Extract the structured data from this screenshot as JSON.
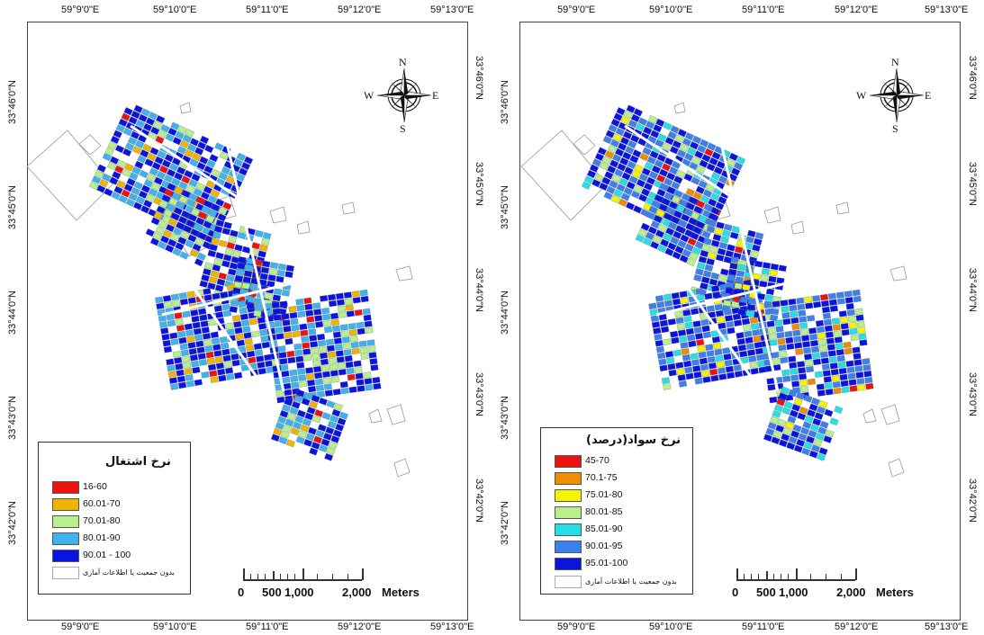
{
  "left_map": {
    "top_lon_labels": [
      "59°9'0\"E",
      "59°10'0\"E",
      "59°11'0\"E",
      "59°12'0\"E",
      "59°13'0\"E"
    ],
    "bottom_lon_labels": [
      "59°9'0\"E",
      "59°10'0\"E",
      "59°11'0\"E",
      "59°12'0\"E",
      "59°13'0\"E"
    ],
    "lat_labels": [
      "33°46'0\"N",
      "33°45'0\"N",
      "33°44'0\"N",
      "33°43'0\"N",
      "33°42'0\"N"
    ],
    "compass": {
      "n": "N",
      "s": "S",
      "e": "E",
      "w": "W"
    },
    "legend": {
      "title": "نرخ اشتغال",
      "items": [
        {
          "label": "16-60",
          "color": "#ee1111"
        },
        {
          "label": "60.01-70",
          "color": "#f0b400"
        },
        {
          "label": "70.01-80",
          "color": "#b7f08c"
        },
        {
          "label": "80.01-90",
          "color": "#3cb2ee"
        },
        {
          "label": "90.01 - 100",
          "color": "#0a14e0"
        }
      ],
      "no_data_label": "بدون جمعیت یا اطلاعات آماری",
      "no_data_color": "#ffffff"
    },
    "scale": {
      "ticks": [
        "0",
        "500",
        "1,000",
        "2,000"
      ],
      "unit": "Meters"
    }
  },
  "right_map": {
    "top_lon_labels": [
      "59°9'0\"E",
      "59°10'0\"E",
      "59°11'0\"E",
      "59°12'0\"E",
      "59°13'0\"E"
    ],
    "bottom_lon_labels": [
      "59°9'0\"E",
      "59°10'0\"E",
      "59°11'0\"E",
      "59°12'0\"E",
      "59°13'0\"E"
    ],
    "lat_labels": [
      "33°46'0\"N",
      "33°45'0\"N",
      "33°44'0\"N",
      "33°43'0\"N",
      "33°42'0\"N"
    ],
    "compass": {
      "n": "N",
      "s": "S",
      "e": "E",
      "w": "W"
    },
    "legend": {
      "title": "نرخ سواد(درصد)",
      "items": [
        {
          "label": "45-70",
          "color": "#ee1111"
        },
        {
          "label": "70.1-75",
          "color": "#f08c00"
        },
        {
          "label": "75.01-80",
          "color": "#f5f500"
        },
        {
          "label": "80.01-85",
          "color": "#b7f08c"
        },
        {
          "label": "85.01-90",
          "color": "#22e0e6"
        },
        {
          "label": "90.01-95",
          "color": "#3c80ee"
        },
        {
          "label": "95.01-100",
          "color": "#0a14e0"
        }
      ],
      "no_data_label": "بدون جمعیت یا اطلاعات آماری",
      "no_data_color": "#ffffff"
    },
    "scale": {
      "ticks": [
        "0",
        "500",
        "1,000",
        "2,000"
      ],
      "unit": "Meters"
    }
  }
}
